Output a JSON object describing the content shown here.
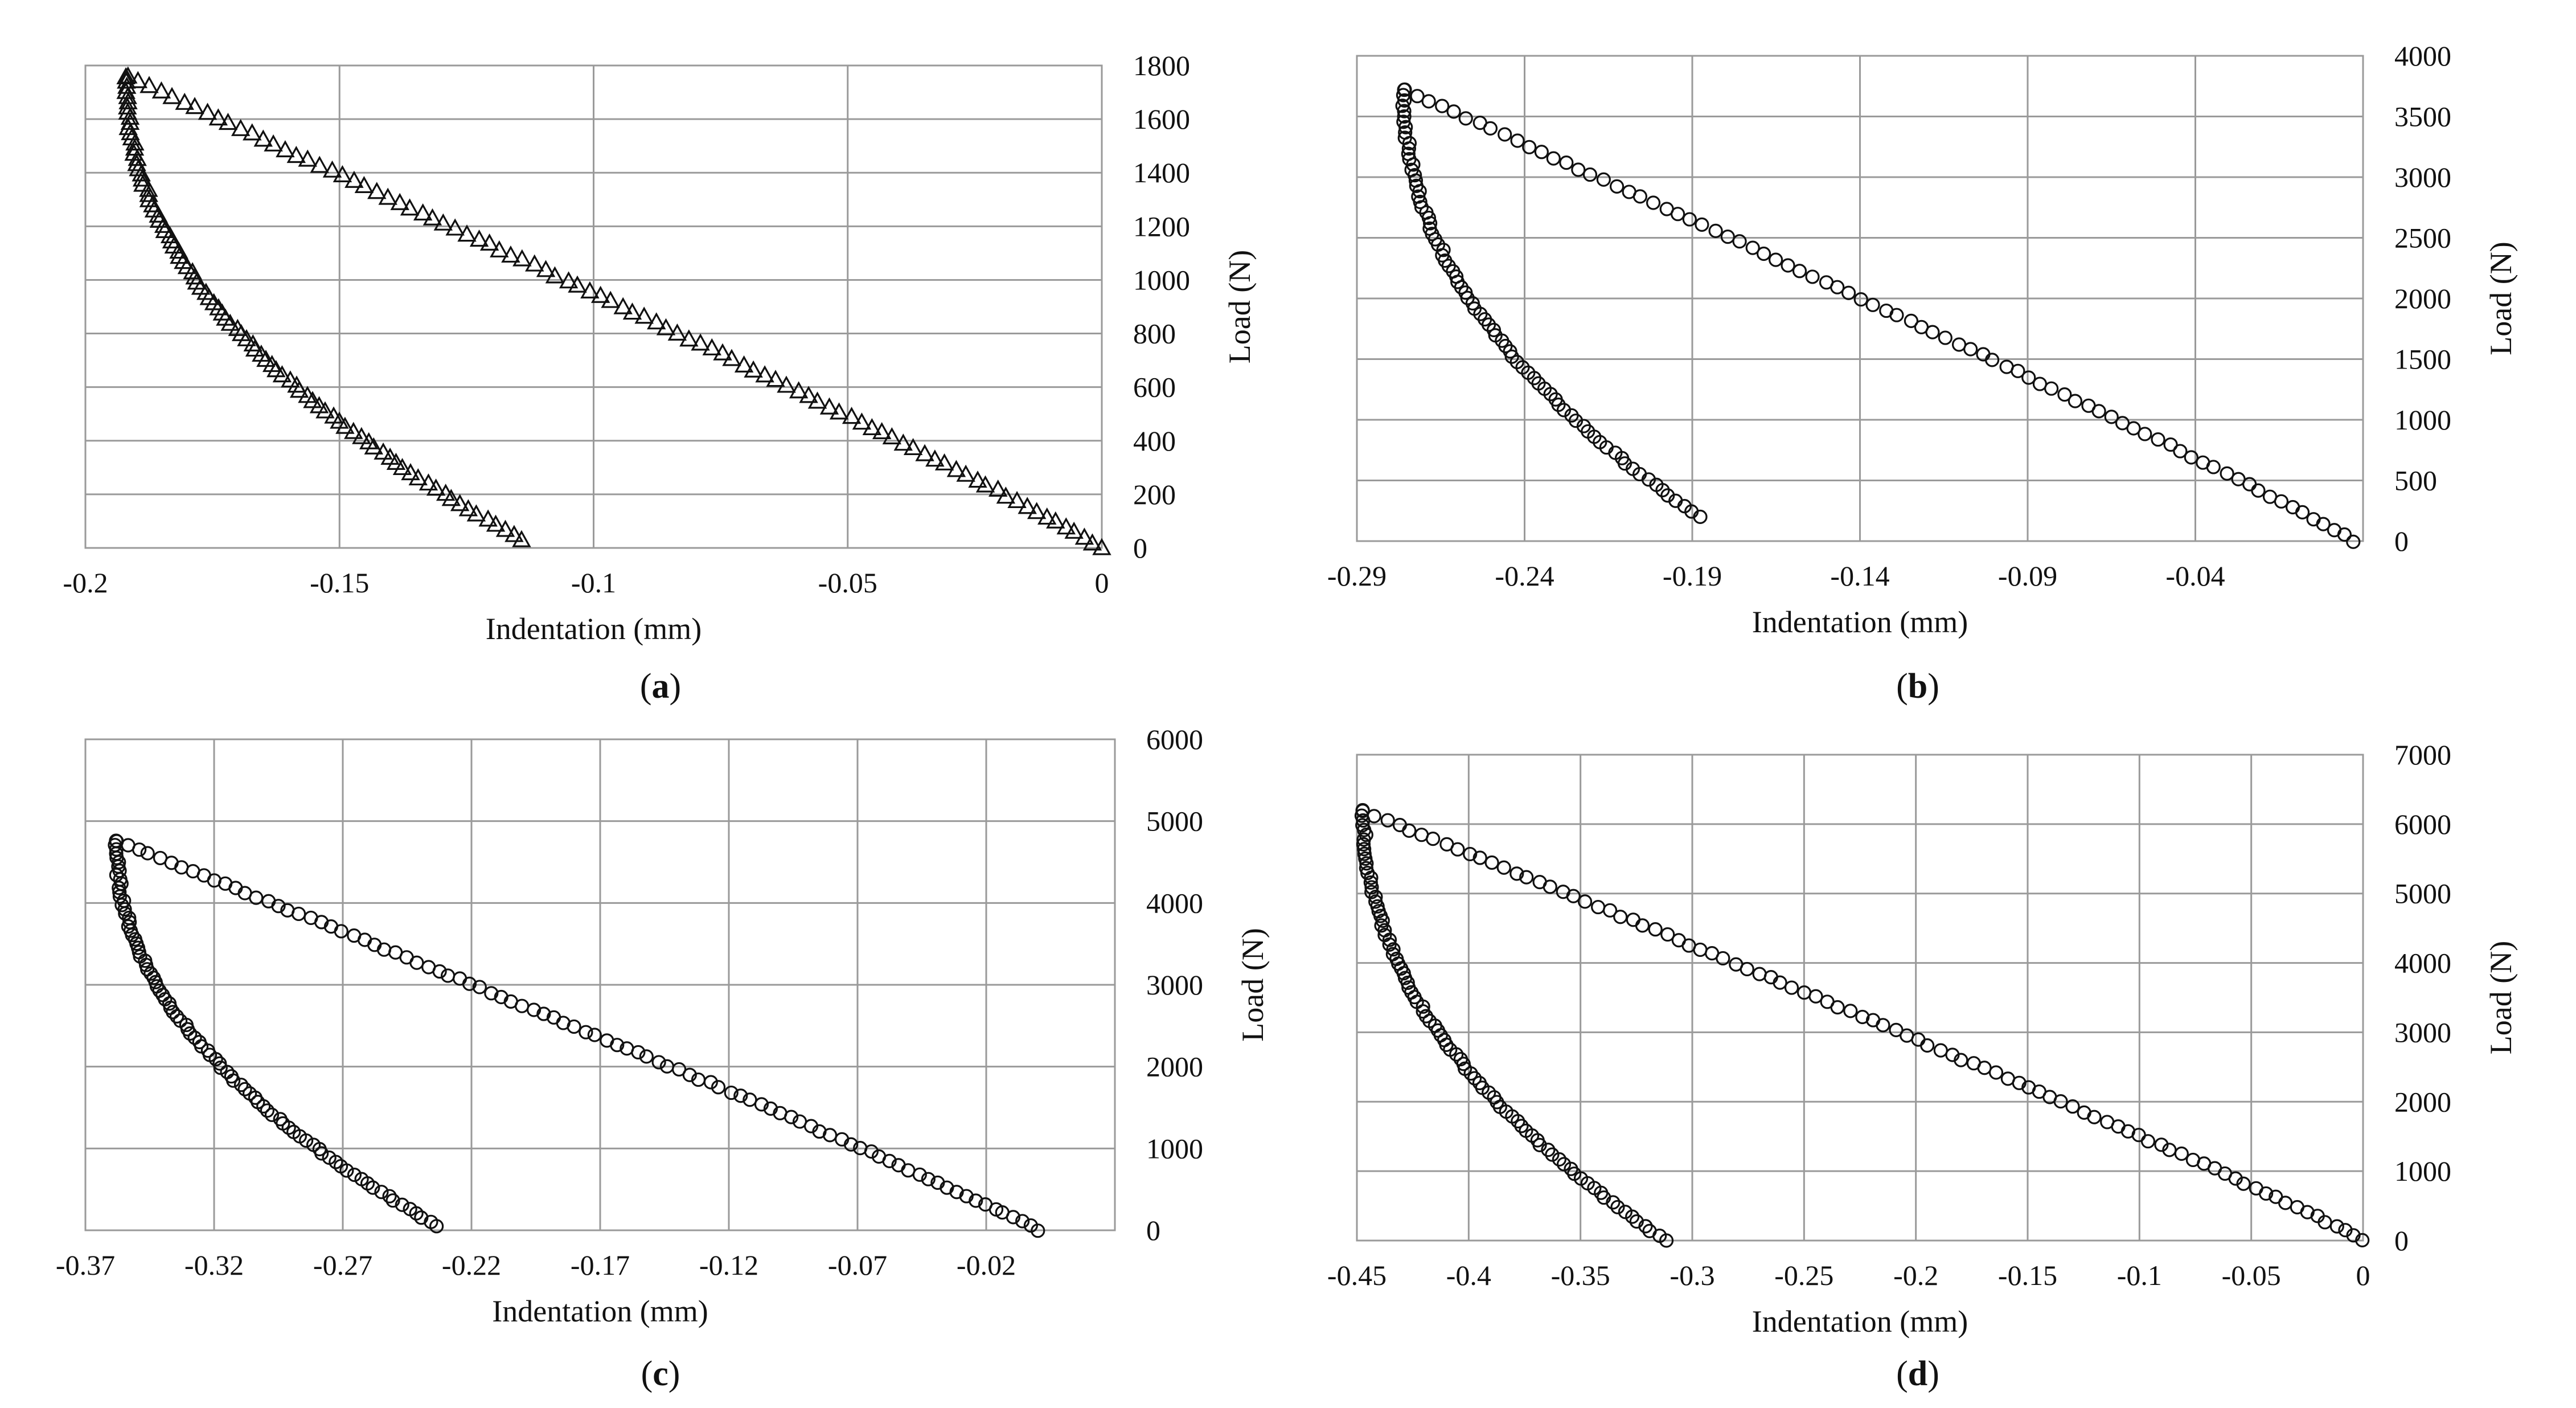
{
  "figure": {
    "panel_labels": [
      "a",
      "b",
      "c",
      "d"
    ]
  },
  "chart_data": [
    {
      "panel": "a",
      "type": "scatter",
      "marker": "triangle",
      "xlabel": "Indentation (mm)",
      "ylabel": "Load (N)",
      "xlim": [
        -0.2,
        0
      ],
      "ylim": [
        0,
        1800
      ],
      "xticks": [
        -0.2,
        -0.15,
        -0.1,
        -0.05,
        0
      ],
      "xtick_labels": [
        "-0.2",
        "-0.15",
        "-0.1",
        "-0.05",
        "0"
      ],
      "yticks": [
        0,
        200,
        400,
        600,
        800,
        1000,
        1200,
        1400,
        1600,
        1800
      ],
      "ytick_labels": [
        "0",
        "200",
        "400",
        "600",
        "800",
        "1000",
        "1200",
        "1400",
        "1600",
        "1800"
      ],
      "loading": {
        "start": [
          0,
          0
        ],
        "end": [
          -0.192,
          1760
        ]
      },
      "unloading": {
        "start": [
          -0.192,
          1760
        ],
        "end": [
          -0.114,
          30
        ]
      },
      "points_per_branch": 90
    },
    {
      "panel": "b",
      "type": "scatter",
      "marker": "circle",
      "xlabel": "Indentation (mm)",
      "ylabel": "Load (N)",
      "xlim": [
        -0.29,
        0.01
      ],
      "ylim": [
        0,
        4000
      ],
      "xticks": [
        -0.29,
        -0.24,
        -0.19,
        -0.14,
        -0.09,
        -0.04
      ],
      "xtick_labels": [
        "-0.29",
        "-0.24",
        "-0.19",
        "-0.14",
        "-0.09",
        "-0.04"
      ],
      "yticks": [
        0,
        500,
        1000,
        1500,
        2000,
        2500,
        3000,
        3500,
        4000
      ],
      "ytick_labels": [
        "0",
        "500",
        "1000",
        "1500",
        "2000",
        "2500",
        "3000",
        "3500",
        "4000"
      ],
      "loading": {
        "start": [
          0.007,
          0
        ],
        "end": [
          -0.276,
          3720
        ]
      },
      "unloading": {
        "start": [
          -0.276,
          3720
        ],
        "end": [
          -0.188,
          200
        ]
      },
      "points_per_branch": 80
    },
    {
      "panel": "c",
      "type": "scatter",
      "marker": "circle",
      "xlabel": "Indentation (mm)",
      "ylabel": "Load (N)",
      "xlim": [
        -0.37,
        0.03
      ],
      "ylim": [
        0,
        6000
      ],
      "xticks": [
        -0.37,
        -0.32,
        -0.27,
        -0.22,
        -0.17,
        -0.12,
        -0.07,
        -0.02
      ],
      "xtick_labels": [
        "-0.37",
        "-0.32",
        "-0.27",
        "-0.22",
        "-0.17",
        "-0.12",
        "-0.07",
        "-0.02"
      ],
      "yticks": [
        0,
        1000,
        2000,
        3000,
        4000,
        5000,
        6000
      ],
      "ytick_labels": [
        "0",
        "1000",
        "2000",
        "3000",
        "4000",
        "5000",
        "6000"
      ],
      "loading": {
        "start": [
          0,
          0
        ],
        "end": [
          -0.358,
          4760
        ]
      },
      "unloading": {
        "start": [
          -0.358,
          4760
        ],
        "end": [
          -0.233,
          50
        ]
      },
      "points_per_branch": 90
    },
    {
      "panel": "d",
      "type": "scatter",
      "marker": "circle",
      "xlabel": "Indentation (mm)",
      "ylabel": "Load (N)",
      "xlim": [
        -0.45,
        0
      ],
      "ylim": [
        0,
        7000
      ],
      "xticks": [
        -0.45,
        -0.4,
        -0.35,
        -0.3,
        -0.25,
        -0.2,
        -0.15,
        -0.1,
        -0.05,
        0
      ],
      "xtick_labels": [
        "-0.45",
        "-0.4",
        "-0.35",
        "-0.3",
        "-0.25",
        "-0.2",
        "-0.15",
        "-0.1",
        "-0.05",
        "0"
      ],
      "yticks": [
        0,
        1000,
        2000,
        3000,
        4000,
        5000,
        6000,
        7000
      ],
      "ytick_labels": [
        "0",
        "1000",
        "2000",
        "3000",
        "4000",
        "5000",
        "6000",
        "7000"
      ],
      "loading": {
        "start": [
          0,
          0
        ],
        "end": [
          -0.447,
          6190
        ]
      },
      "unloading": {
        "start": [
          -0.447,
          6190
        ],
        "end": [
          -0.312,
          0
        ]
      },
      "points_per_branch": 90
    }
  ]
}
